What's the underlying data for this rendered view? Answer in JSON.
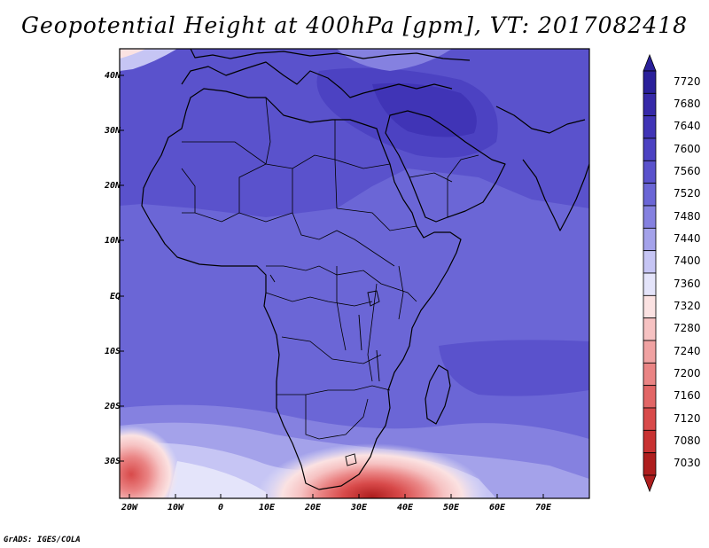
{
  "title": "Geopotential Height at 400hPa [gpm], VT: 2017082418",
  "credit": "GrADS: IGES/COLA",
  "lat_labels": [
    "40N",
    "30N",
    "20N",
    "10N",
    "EQ",
    "10S",
    "20S",
    "30S"
  ],
  "lon_labels": [
    "20W",
    "10W",
    "0",
    "10E",
    "20E",
    "30E",
    "40E",
    "50E",
    "60E",
    "70E"
  ],
  "colorbar": {
    "labels": [
      "7720",
      "7680",
      "7640",
      "7600",
      "7560",
      "7520",
      "7480",
      "7440",
      "7400",
      "7360",
      "7320",
      "7280",
      "7240",
      "7200",
      "7160",
      "7120",
      "7080",
      "7030"
    ],
    "colors": [
      "#2a209a",
      "#3629a8",
      "#4034b6",
      "#4c42c2",
      "#5a52cc",
      "#6b66d6",
      "#8581e0",
      "#a4a2ea",
      "#c6c5f4",
      "#e4e4fa",
      "#fbe2e2",
      "#f6c2c2",
      "#f0a2a2",
      "#ea8484",
      "#e26666",
      "#d84a4a",
      "#c83232",
      "#ae1e1e"
    ]
  },
  "map_colors": {
    "base": "#6b66d6",
    "north_band": "#5a52cc",
    "arabia_high": "#4c42c2",
    "ocean_high": "#5a52cc",
    "south_low_outer": "#a4a2ea",
    "south_low_mid": "#e4e4fa",
    "south_low_core": "#c83232",
    "coast": "#000000"
  }
}
